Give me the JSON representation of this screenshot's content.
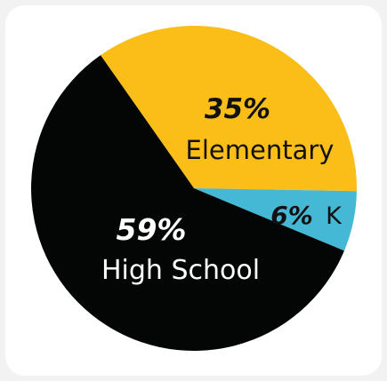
{
  "chart_data": {
    "type": "pie",
    "slices": [
      {
        "label": "Elementary",
        "value": 35,
        "value_label": "35%",
        "color": "#fbbe19"
      },
      {
        "label": "K",
        "value": 6,
        "value_label": "6%",
        "color": "#45b8d5"
      },
      {
        "label": "High School",
        "value": 59,
        "value_label": "59%",
        "color": "#040606"
      }
    ],
    "title": "",
    "legend": "none"
  },
  "colors": {
    "background": "#f2f2f2",
    "card": "#ffffff",
    "dark_text": "#111111",
    "light_text": "#ffffff"
  }
}
